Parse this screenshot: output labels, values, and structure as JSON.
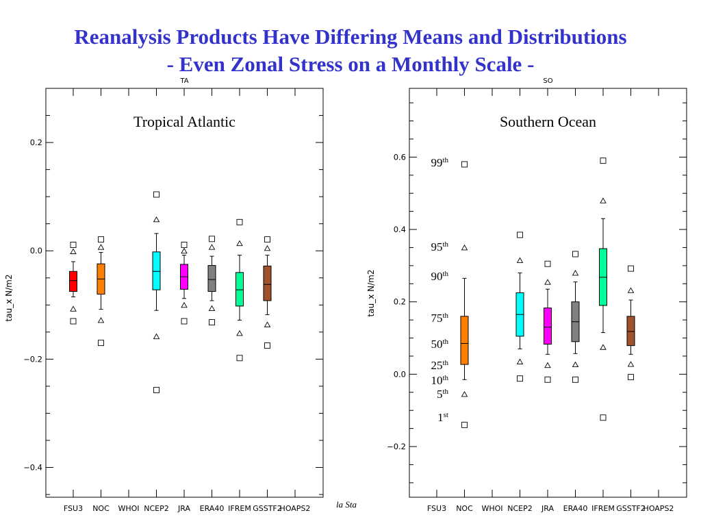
{
  "slide": {
    "title_line1": "Reanalysis Products Have Differing Means and Distributions",
    "title_line2": "- Even Zonal Stress on a Monthly Scale -",
    "footer_fragment": "la Sta",
    "title_color": "#3333cc"
  },
  "percentile_key": [
    {
      "num": "99",
      "sup": "th",
      "value": 0.58
    },
    {
      "num": "95",
      "sup": "th",
      "value": 0.35
    },
    {
      "num": "90",
      "sup": "th",
      "value": 0.265
    },
    {
      "num": "75",
      "sup": "th",
      "value": 0.16
    },
    {
      "num": "50",
      "sup": "th",
      "value": 0.085
    },
    {
      "num": "25",
      "sup": "th",
      "value": 0.027
    },
    {
      "num": "10",
      "sup": "th",
      "value": -0.015
    },
    {
      "num": "5",
      "sup": "th",
      "value": -0.055
    },
    {
      "num": "1",
      "sup": "st",
      "value": -0.14
    }
  ],
  "chart_data": [
    {
      "type": "box",
      "panel_code": "TA",
      "subtitle": "Tropical Atlantic",
      "ylabel": "tau_x N/m2",
      "ylim": [
        -0.455,
        0.3
      ],
      "yticks": [
        -0.4,
        -0.2,
        0.0,
        0.2
      ],
      "ytick_labels": [
        "−0.4",
        "−0.2",
        "0.0",
        "0.2"
      ],
      "categories": [
        "FSU3",
        "NOC",
        "WHOI",
        "NCEP2",
        "JRA",
        "ERA40",
        "IFREM",
        "GSSTF2",
        "HOAPS2"
      ],
      "boxes": [
        {
          "name": "FSU3",
          "color": "#ff0000",
          "p1": -0.13,
          "p5": -0.107,
          "p10": -0.085,
          "p25": -0.075,
          "p50": -0.055,
          "p75": -0.038,
          "p90": -0.02,
          "p95": -0.001,
          "p99": 0.011
        },
        {
          "name": "NOC",
          "color": "#ff7f00",
          "p1": -0.17,
          "p5": -0.128,
          "p10": -0.108,
          "p25": -0.08,
          "p50": -0.052,
          "p75": -0.024,
          "p90": -0.003,
          "p95": 0.007,
          "p99": 0.021
        },
        null,
        {
          "name": "NCEP2",
          "color": "#00ffff",
          "p1": -0.257,
          "p5": -0.158,
          "p10": -0.11,
          "p25": -0.072,
          "p50": -0.038,
          "p75": -0.002,
          "p90": 0.032,
          "p95": 0.058,
          "p99": 0.104
        },
        {
          "name": "JRA",
          "color": "#ff00ff",
          "p1": -0.13,
          "p5": -0.1,
          "p10": -0.088,
          "p25": -0.071,
          "p50": -0.048,
          "p75": -0.025,
          "p90": -0.008,
          "p95": 0.0,
          "p99": 0.011
        },
        {
          "name": "ERA40",
          "color": "#808080",
          "p1": -0.132,
          "p5": -0.106,
          "p10": -0.092,
          "p25": -0.075,
          "p50": -0.053,
          "p75": -0.027,
          "p90": -0.01,
          "p95": 0.007,
          "p99": 0.022
        },
        {
          "name": "IFREM",
          "color": "#00ff99",
          "p1": -0.198,
          "p5": -0.152,
          "p10": -0.128,
          "p25": -0.102,
          "p50": -0.072,
          "p75": -0.04,
          "p90": -0.008,
          "p95": 0.014,
          "p99": 0.053
        },
        {
          "name": "GSSTF2",
          "color": "#a0522d",
          "p1": -0.175,
          "p5": -0.136,
          "p10": -0.118,
          "p25": -0.092,
          "p50": -0.062,
          "p75": -0.028,
          "p90": -0.008,
          "p95": 0.005,
          "p99": 0.021
        },
        null
      ]
    },
    {
      "type": "box",
      "panel_code": "SO",
      "subtitle": "Southern Ocean",
      "ylabel": "tau_x N/m2",
      "ylim": [
        -0.34,
        0.79
      ],
      "yticks": [
        -0.2,
        0.0,
        0.2,
        0.4,
        0.6
      ],
      "ytick_labels": [
        "−0.2",
        "0.0",
        "0.2",
        "0.4",
        "0.6"
      ],
      "categories": [
        "FSU3",
        "NOC",
        "WHOI",
        "NCEP2",
        "JRA",
        "ERA40",
        "IFREM",
        "GSSTF2",
        "HOAPS2"
      ],
      "boxes": [
        null,
        {
          "name": "NOC",
          "color": "#ff7f00",
          "p1": -0.14,
          "p5": -0.055,
          "p10": -0.015,
          "p25": 0.027,
          "p50": 0.085,
          "p75": 0.16,
          "p90": 0.265,
          "p95": 0.35,
          "p99": 0.58
        },
        null,
        {
          "name": "NCEP2",
          "color": "#00ffff",
          "p1": -0.012,
          "p5": 0.035,
          "p10": 0.07,
          "p25": 0.105,
          "p50": 0.165,
          "p75": 0.225,
          "p90": 0.28,
          "p95": 0.315,
          "p99": 0.385
        },
        {
          "name": "JRA",
          "color": "#ff00ff",
          "p1": -0.015,
          "p5": 0.025,
          "p10": 0.055,
          "p25": 0.083,
          "p50": 0.13,
          "p75": 0.183,
          "p90": 0.235,
          "p95": 0.255,
          "p99": 0.305
        },
        {
          "name": "ERA40",
          "color": "#808080",
          "p1": -0.015,
          "p5": 0.027,
          "p10": 0.057,
          "p25": 0.09,
          "p50": 0.145,
          "p75": 0.2,
          "p90": 0.255,
          "p95": 0.28,
          "p99": 0.332
        },
        {
          "name": "IFREM",
          "color": "#00ff99",
          "p1": -0.12,
          "p5": 0.075,
          "p10": 0.115,
          "p25": 0.19,
          "p50": 0.268,
          "p75": 0.347,
          "p90": 0.43,
          "p95": 0.48,
          "p99": 0.59
        },
        {
          "name": "GSSTF2",
          "color": "#a0522d",
          "p1": -0.008,
          "p5": 0.028,
          "p10": 0.055,
          "p25": 0.079,
          "p50": 0.118,
          "p75": 0.16,
          "p90": 0.205,
          "p95": 0.232,
          "p99": 0.292
        },
        null
      ]
    }
  ]
}
